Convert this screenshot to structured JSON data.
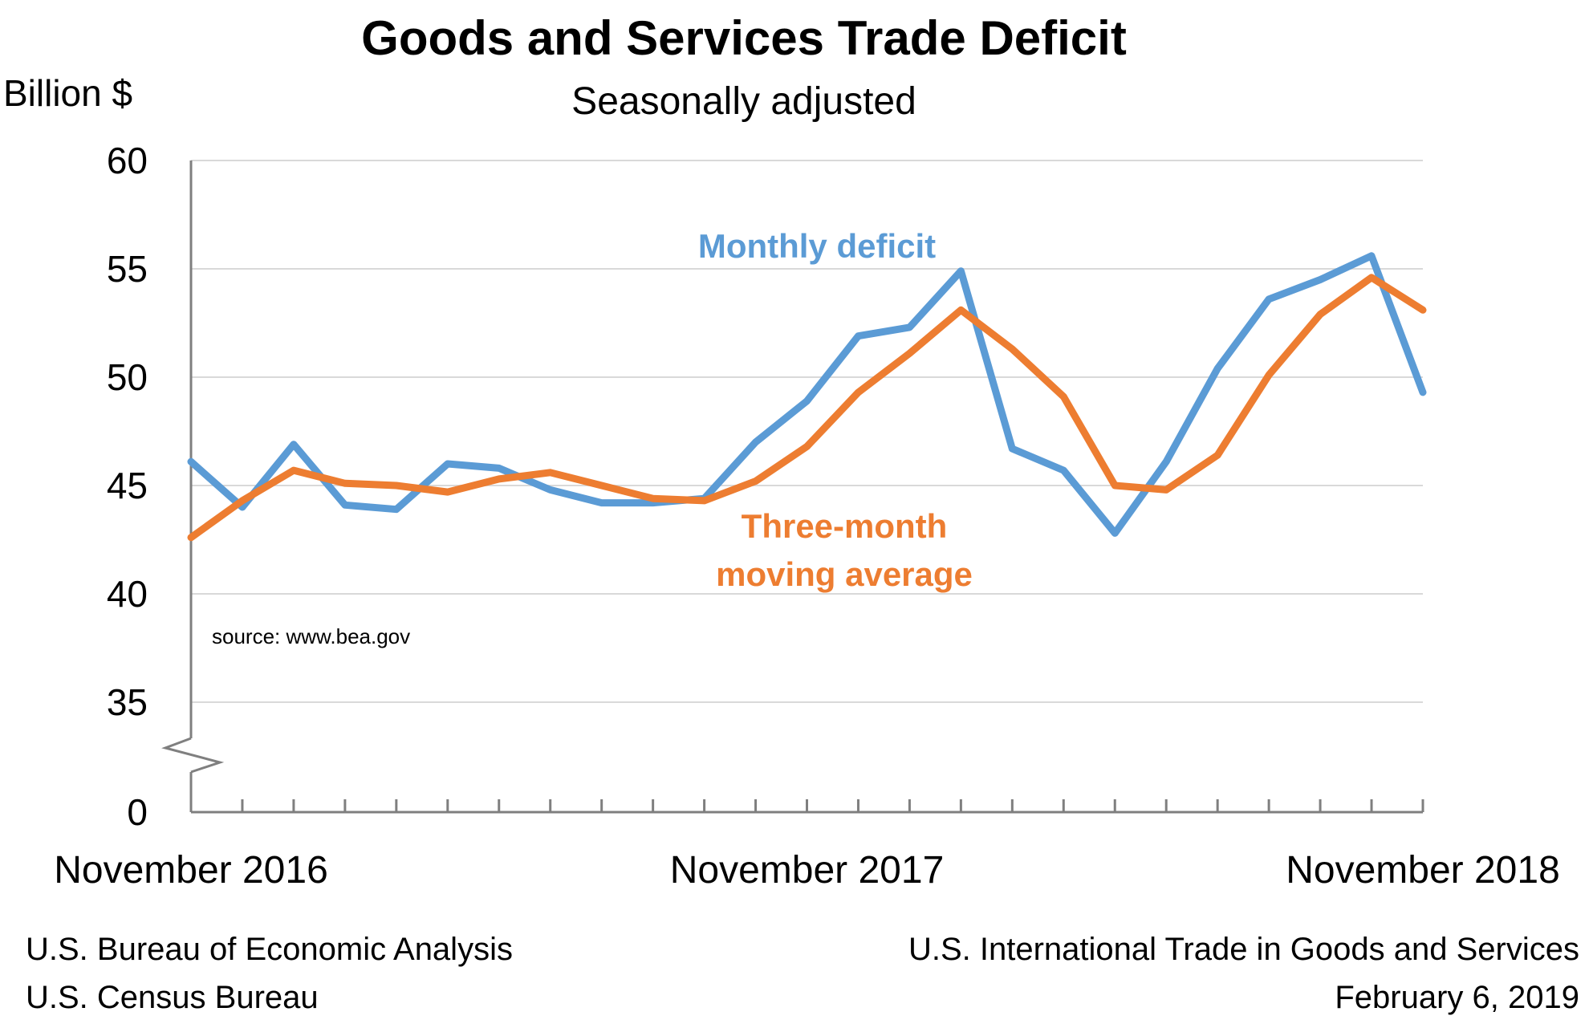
{
  "chart_data": {
    "type": "line",
    "title": "Goods and Services Trade Deficit",
    "subtitle": "Seasonally adjusted",
    "ylabel": "Billion $",
    "ylim": [
      30,
      60
    ],
    "y_ticks": [
      60,
      55,
      50,
      45,
      40,
      35,
      0
    ],
    "axis_break": true,
    "grid": true,
    "x": [
      "2016-11",
      "2016-12",
      "2017-01",
      "2017-02",
      "2017-03",
      "2017-04",
      "2017-05",
      "2017-06",
      "2017-07",
      "2017-08",
      "2017-09",
      "2017-10",
      "2017-11",
      "2017-12",
      "2018-01",
      "2018-02",
      "2018-03",
      "2018-04",
      "2018-05",
      "2018-06",
      "2018-07",
      "2018-08",
      "2018-09",
      "2018-10",
      "2018-11"
    ],
    "x_tick_labels": [
      "November 2016",
      "November 2017",
      "November 2018"
    ],
    "series": [
      {
        "name": "Monthly deficit",
        "color": "#5B9BD5",
        "values": [
          46.1,
          44.0,
          46.9,
          44.1,
          43.9,
          46.0,
          45.8,
          44.8,
          44.2,
          44.2,
          44.4,
          47.0,
          48.9,
          51.9,
          52.3,
          54.9,
          46.7,
          45.7,
          42.8,
          46.1,
          50.4,
          53.6,
          54.5,
          55.6,
          49.3
        ]
      },
      {
        "name": "Three-month moving average",
        "color": "#ED7D31",
        "values": [
          42.6,
          44.3,
          45.7,
          45.1,
          45.0,
          44.7,
          45.3,
          45.6,
          45.0,
          44.4,
          44.3,
          45.2,
          46.8,
          49.3,
          51.1,
          53.1,
          51.3,
          49.1,
          45.0,
          44.8,
          46.4,
          50.1,
          52.9,
          54.6,
          53.1
        ]
      }
    ],
    "series_labels": {
      "monthly": "Monthly deficit",
      "average_line1": "Three-month",
      "average_line2": "moving average"
    },
    "annotation": "source: www.bea.gov"
  },
  "footer": {
    "left_line1": "U.S. Bureau of Economic Analysis",
    "left_line2": "U.S. Census Bureau",
    "right_line1": "U.S. International Trade in Goods and Services",
    "right_line2": "February 6, 2019"
  }
}
